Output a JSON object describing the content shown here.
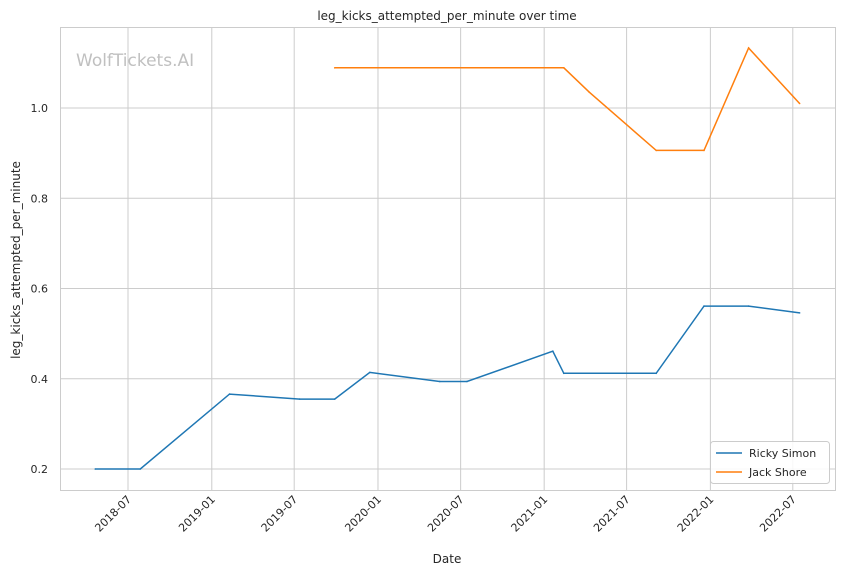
{
  "chart_data": {
    "type": "line",
    "title": "leg_kicks_attempted_per_minute over time",
    "xlabel": "Date",
    "ylabel": "leg_kicks_attempted_per_minute",
    "watermark": "WolfTickets.AI",
    "ylim": [
      0.153,
      1.18
    ],
    "xlim": [
      "2018-02-02",
      "2022-10-01"
    ],
    "yticks": [
      0.2,
      0.4,
      0.6,
      0.8,
      1.0
    ],
    "ytick_labels": [
      "0.2",
      "0.4",
      "0.6",
      "0.8",
      "1.0"
    ],
    "xticks": [
      "2018-07-01",
      "2019-01-01",
      "2019-07-01",
      "2020-01-01",
      "2020-07-01",
      "2021-01-01",
      "2021-07-01",
      "2022-01-01",
      "2022-07-01"
    ],
    "xtick_labels": [
      "2018-07",
      "2019-01",
      "2019-07",
      "2020-01",
      "2020-07",
      "2021-01",
      "2021-07",
      "2022-01",
      "2022-07"
    ],
    "grid": true,
    "legend_position": "bottom-right",
    "series": [
      {
        "name": "Ricky Simon",
        "color": "#1f77b4",
        "x": [
          "2018-04-20",
          "2018-07-28",
          "2019-02-09",
          "2019-07-13",
          "2019-09-28",
          "2019-12-14",
          "2020-05-16",
          "2020-07-15",
          "2021-01-20",
          "2021-02-13",
          "2021-09-04",
          "2021-12-18",
          "2022-03-26",
          "2022-07-16"
        ],
        "y": [
          0.2,
          0.2,
          0.366,
          0.355,
          0.355,
          0.414,
          0.394,
          0.394,
          0.461,
          0.412,
          0.412,
          0.561,
          0.561,
          0.546
        ]
      },
      {
        "name": "Jack Shore",
        "color": "#ff7f0e",
        "x": [
          "2019-09-28",
          "2021-02-13",
          "2021-04-10",
          "2021-09-04",
          "2021-12-18",
          "2022-03-26",
          "2022-07-16"
        ],
        "y": [
          1.089,
          1.089,
          1.035,
          0.906,
          0.906,
          1.133,
          1.01
        ]
      }
    ]
  }
}
